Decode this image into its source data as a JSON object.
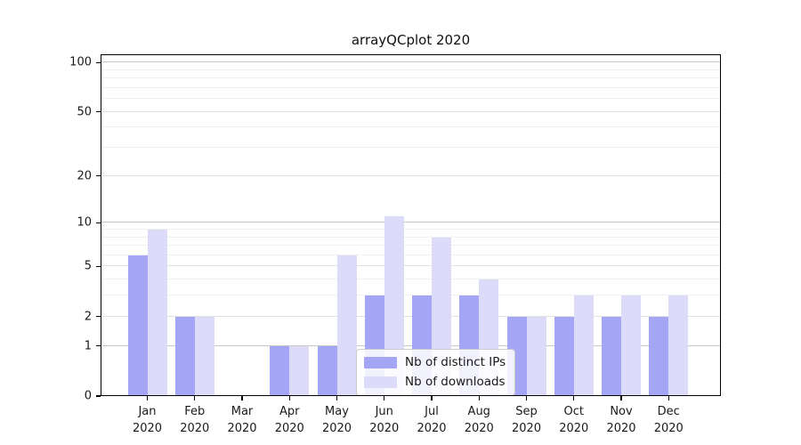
{
  "chart_data": {
    "type": "bar",
    "title": "arrayQCplot 2020",
    "x_categories": [
      "Jan",
      "Feb",
      "Mar",
      "Apr",
      "May",
      "Jun",
      "Jul",
      "Aug",
      "Sep",
      "Oct",
      "Nov",
      "Dec"
    ],
    "x_year_label": "2020",
    "series": [
      {
        "name": "Nb of distinct IPs",
        "color": "#a5a5f6",
        "values": [
          6,
          2,
          0,
          1,
          1,
          3,
          3,
          3,
          2,
          2,
          2,
          2
        ]
      },
      {
        "name": "Nb of downloads",
        "color": "#dcdcfa",
        "values": [
          9,
          2,
          0,
          1,
          6,
          11,
          8,
          4,
          2,
          3,
          3,
          3
        ]
      }
    ],
    "y_axis": {
      "scale": "log1p",
      "ticks": [
        0,
        1,
        2,
        5,
        10,
        20,
        50,
        100
      ],
      "minor_gridlines": [
        3,
        4,
        6,
        7,
        8,
        9,
        30,
        40,
        60,
        70,
        80,
        90
      ],
      "decade_gridlines": [
        1,
        10,
        100
      ],
      "top_value": 112
    },
    "legend_position": "lower center",
    "grid": true
  }
}
